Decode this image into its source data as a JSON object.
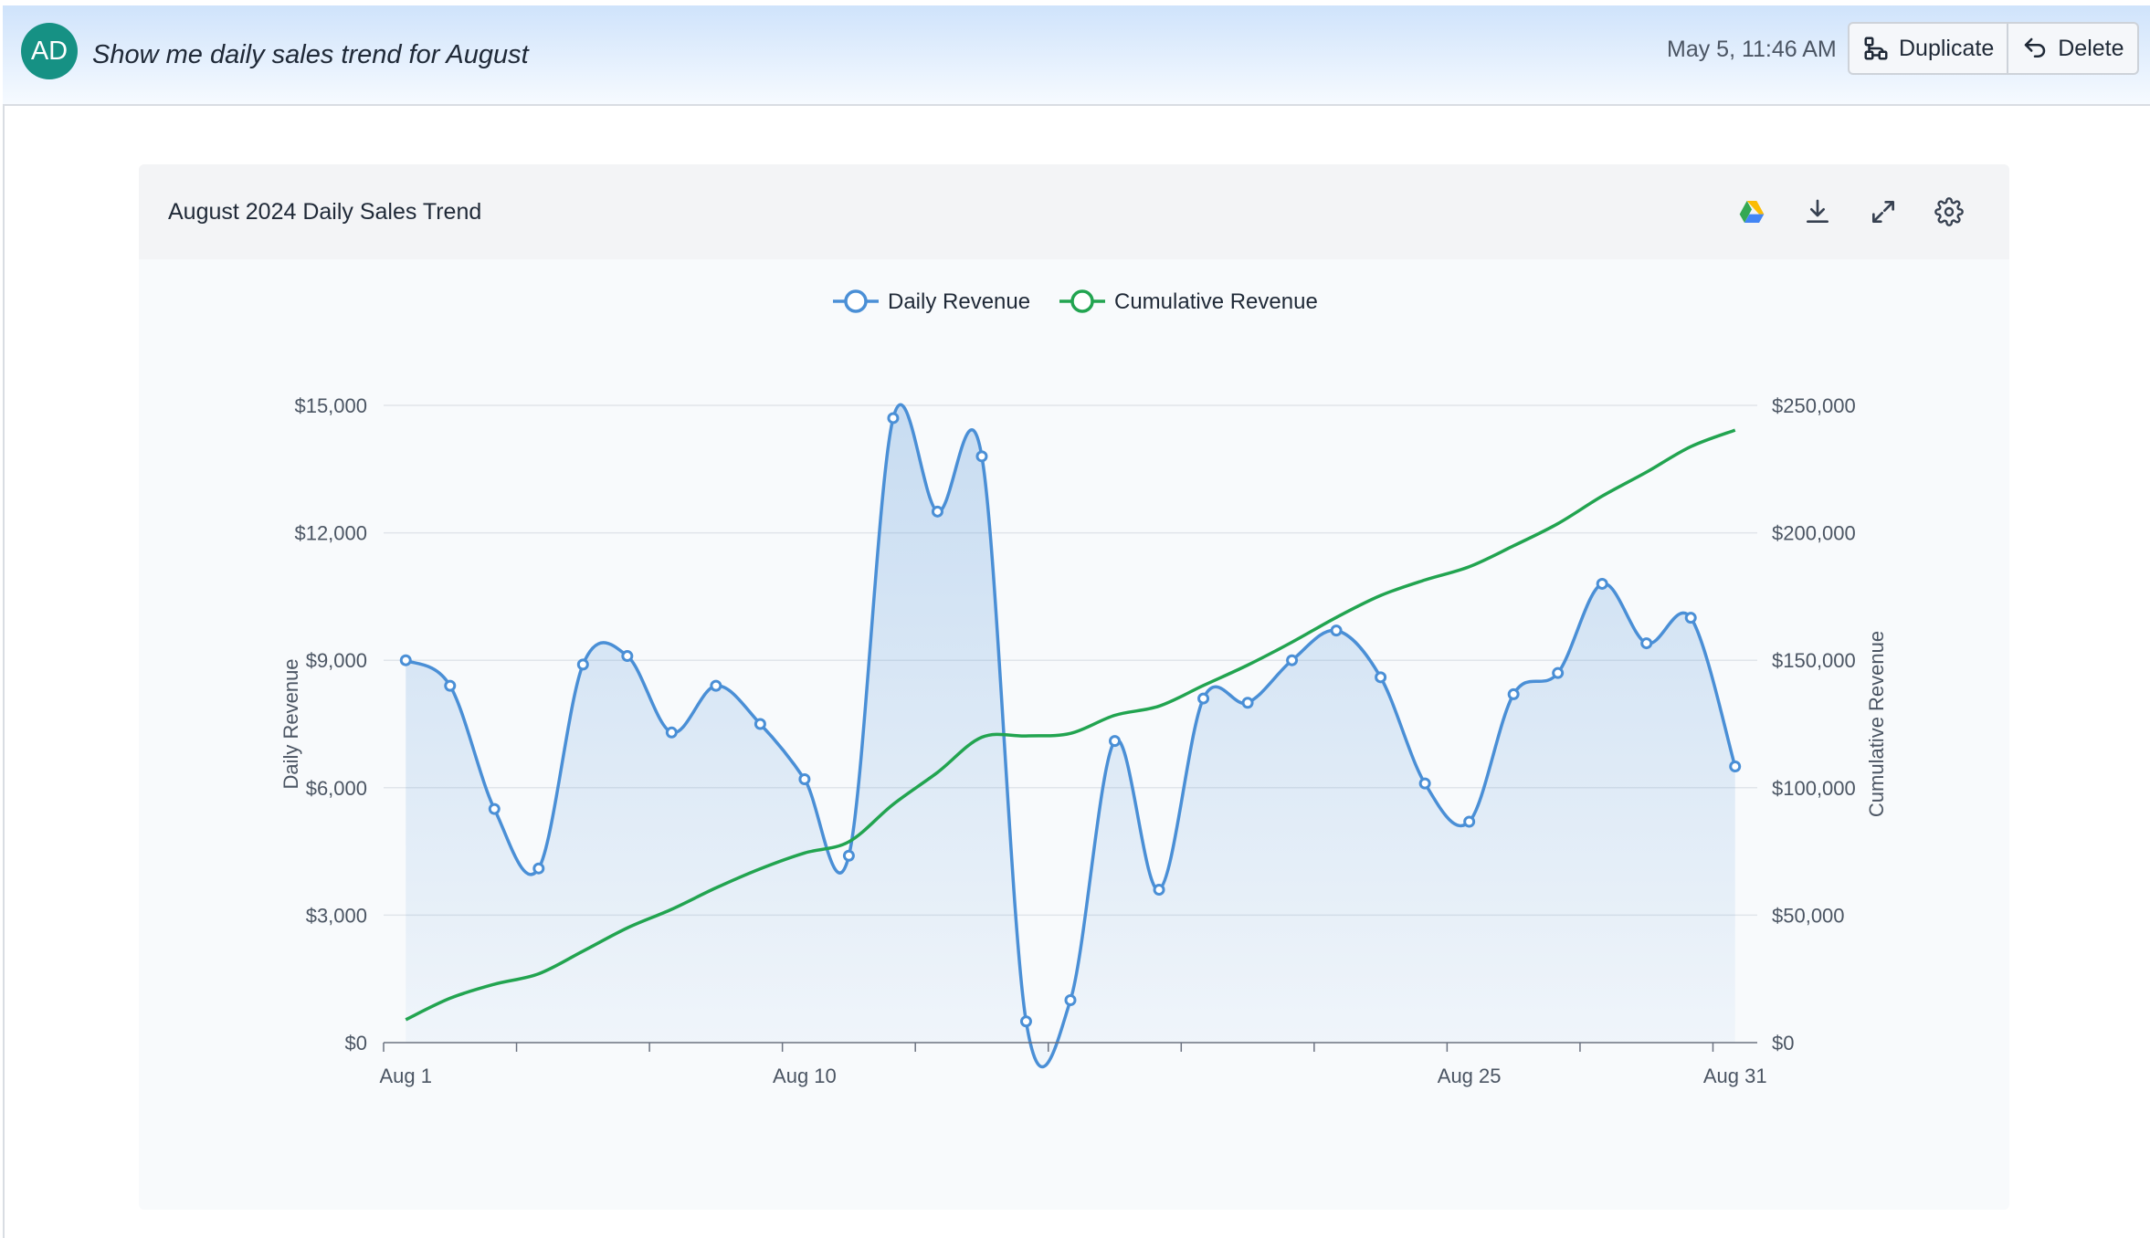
{
  "header": {
    "avatar_initials": "AD",
    "query": "Show me daily sales trend for August",
    "timestamp": "May 5, 11:46 AM",
    "duplicate_label": "Duplicate",
    "delete_label": "Delete"
  },
  "card": {
    "title": "August 2024 Daily Sales Trend",
    "tools": [
      "google-drive-icon",
      "download-icon",
      "expand-icon",
      "gear-icon"
    ]
  },
  "colors": {
    "daily": "#4a8fd6",
    "cumulative": "#22a450",
    "avatar": "#169184"
  },
  "chart_data": {
    "type": "line",
    "title": "August 2024 Daily Sales Trend",
    "x": [
      "Aug 1",
      "Aug 2",
      "Aug 3",
      "Aug 4",
      "Aug 5",
      "Aug 6",
      "Aug 7",
      "Aug 8",
      "Aug 9",
      "Aug 10",
      "Aug 11",
      "Aug 12",
      "Aug 13",
      "Aug 14",
      "Aug 15",
      "Aug 16",
      "Aug 17",
      "Aug 18",
      "Aug 19",
      "Aug 20",
      "Aug 21",
      "Aug 22",
      "Aug 23",
      "Aug 24",
      "Aug 25",
      "Aug 26",
      "Aug 27",
      "Aug 28",
      "Aug 29",
      "Aug 30",
      "Aug 31"
    ],
    "x_tick_labels": [
      "Aug 1",
      "Aug 10",
      "Aug 25",
      "Aug 31"
    ],
    "x_tick_label_days": [
      1,
      10,
      25,
      31
    ],
    "x_tick_marks_days": [
      0.5,
      3.5,
      6.5,
      9.5,
      12.5,
      15.5,
      18.5,
      21.5,
      24.5,
      27.5,
      30.5
    ],
    "legend": [
      "Daily Revenue",
      "Cumulative Revenue"
    ],
    "legend_position": "top-center",
    "ylabel": "Daily Revenue",
    "y2label": "Cumulative Revenue",
    "ylim": [
      0,
      15000
    ],
    "y2lim": [
      0,
      250000
    ],
    "y_ticks": [
      "$0",
      "$3,000",
      "$6,000",
      "$9,000",
      "$12,000",
      "$15,000"
    ],
    "y2_ticks": [
      "$0",
      "$50,000",
      "$100,000",
      "$150,000",
      "$200,000",
      "$250,000"
    ],
    "y_tick_values": [
      0,
      3000,
      6000,
      9000,
      12000,
      15000
    ],
    "grid": true,
    "series": [
      {
        "name": "Daily Revenue",
        "axis": "left",
        "area": true,
        "markers": true,
        "values": [
          9000,
          8400,
          5500,
          4100,
          8900,
          9100,
          7300,
          8400,
          7500,
          6200,
          4400,
          14700,
          12500,
          13800,
          500,
          1000,
          7100,
          3600,
          8100,
          8000,
          9000,
          9700,
          8600,
          6100,
          5200,
          8200,
          8700,
          10800,
          9400,
          10000,
          6500
        ]
      },
      {
        "name": "Cumulative Revenue",
        "axis": "right",
        "area": false,
        "markers": false,
        "values": [
          9000,
          17400,
          22900,
          27000,
          35900,
          45000,
          52300,
          60700,
          68200,
          74400,
          78800,
          93500,
          106000,
          119800,
          120300,
          121300,
          128400,
          132000,
          140100,
          148100,
          157100,
          166800,
          175400,
          181500,
          186700,
          194900,
          203600,
          214400,
          223800,
          233800,
          240300
        ]
      }
    ]
  }
}
